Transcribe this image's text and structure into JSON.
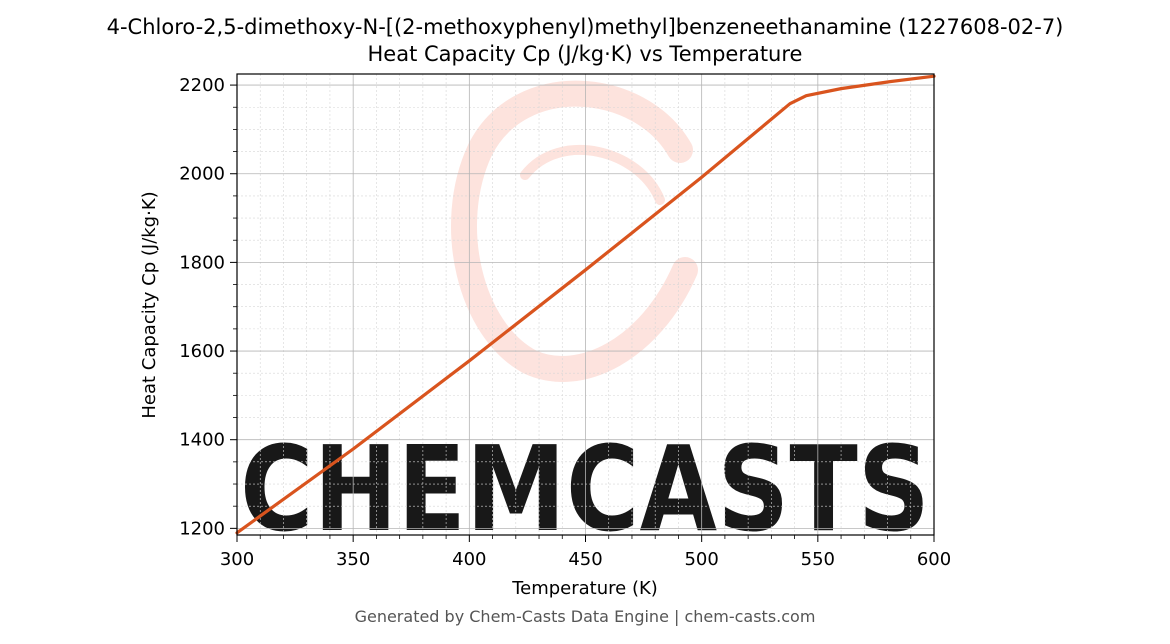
{
  "chart_data": {
    "type": "line",
    "title": "4-Chloro-2,5-dimethoxy-N-[(2-methoxyphenyl)methyl]benzeneethanamine (1227608-02-7)",
    "subtitle": "Heat Capacity Cp (J/kg·K) vs Temperature",
    "xlabel": "Temperature (K)",
    "ylabel": "Heat Capacity Cp (J/kg·K)",
    "xlim": [
      300,
      600
    ],
    "ylim": [
      1185,
      2225
    ],
    "xticks": [
      300,
      350,
      400,
      450,
      500,
      550,
      600
    ],
    "yticks": [
      1200,
      1400,
      1600,
      1800,
      2000,
      2200
    ],
    "grid": true,
    "legend": "none",
    "series": [
      {
        "color": "#d9541e",
        "x": [
          300,
          350,
          400,
          450,
          500,
          538,
          545,
          560,
          580,
          600
        ],
        "y": [
          1190,
          1379,
          1578,
          1783,
          1992,
          2158,
          2176,
          2192,
          2207,
          2220
        ]
      }
    ]
  },
  "watermark": {
    "text": "CHEMCASTS",
    "color": "#fde0da"
  },
  "footer": "Generated by Chem-Casts Data Engine | chem-casts.com"
}
